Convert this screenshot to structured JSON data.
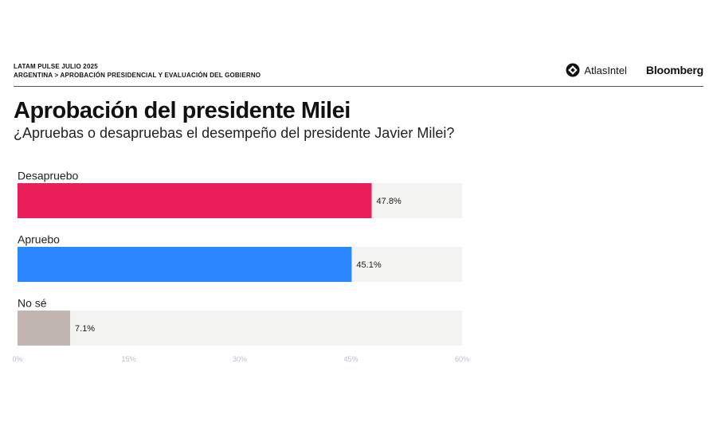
{
  "header": {
    "kicker_line1": "LATAM PULSE JULIO 2025",
    "kicker_line2": "ARGENTINA > APROBACIÓN PRESIDENCIAL Y EVALUACIÓN DEL GOBIERNO",
    "logo_atlas": "AtlasIntel",
    "logo_bloomberg": "Bloomberg"
  },
  "title": "Aprobación del presidente Milei",
  "subtitle": "¿Apruebas o desapruebas el desempeño del presidente Javier Milei?",
  "chart_data": {
    "type": "bar",
    "orientation": "horizontal",
    "categories": [
      "Desapruebo",
      "Apruebo",
      "No sé"
    ],
    "values": [
      47.8,
      45.1,
      7.1
    ],
    "value_labels": [
      "47.8%",
      "45.1%",
      "7.1%"
    ],
    "colors": [
      "#e91e5a",
      "#2b87ff",
      "#c2b6b0"
    ],
    "track_color": "#f3f3f1",
    "xlim": [
      0,
      60
    ],
    "ticks": [
      0,
      15,
      30,
      45,
      60
    ],
    "tick_labels": [
      "0%",
      "15%",
      "30%",
      "45%",
      "60%"
    ],
    "grid": false,
    "legend": "none"
  }
}
